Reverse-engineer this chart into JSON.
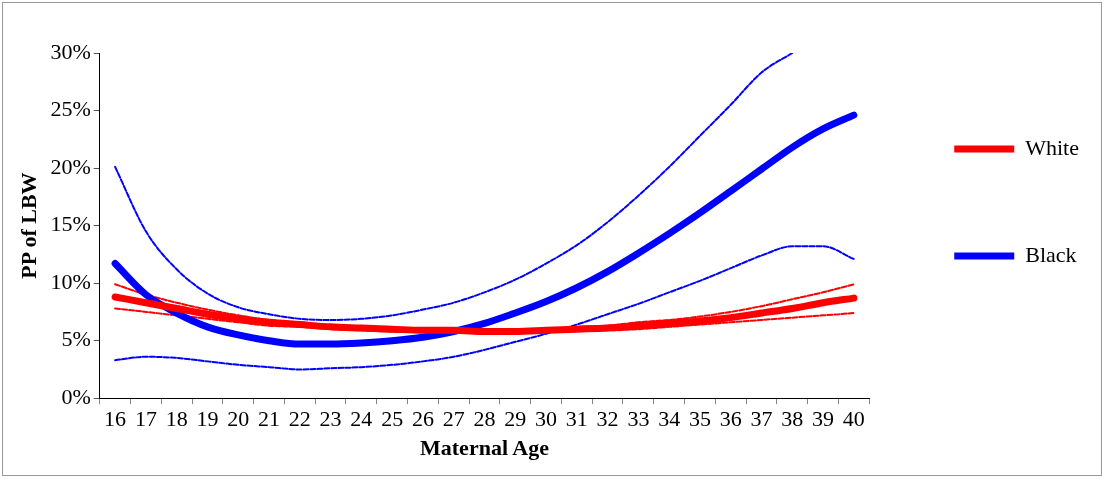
{
  "chart_data": {
    "type": "line",
    "xlabel": "Maternal Age",
    "ylabel": "PP of LBW",
    "categories": [
      "16",
      "17",
      "18",
      "19",
      "20",
      "21",
      "22",
      "23",
      "24",
      "25",
      "26",
      "27",
      "28",
      "29",
      "30",
      "31",
      "32",
      "33",
      "34",
      "35",
      "36",
      "37",
      "38",
      "39",
      "40"
    ],
    "ylim": [
      0,
      30
    ],
    "yticks": [
      {
        "value": 0,
        "label": "0%"
      },
      {
        "value": 5,
        "label": "5%"
      },
      {
        "value": 10,
        "label": "10%"
      },
      {
        "value": 15,
        "label": "15%"
      },
      {
        "value": 20,
        "label": "20%"
      },
      {
        "value": 25,
        "label": "25%"
      },
      {
        "value": 30,
        "label": "30%"
      }
    ],
    "grid": false,
    "legend": "right",
    "marker": "none",
    "line_style": "solid",
    "series": [
      {
        "name": "White",
        "color": "#ff0000",
        "values": [
          8.8,
          8.3,
          7.8,
          7.3,
          6.9,
          6.6,
          6.4,
          6.2,
          6.1,
          6.0,
          5.9,
          5.9,
          5.8,
          5.8,
          5.9,
          6.0,
          6.1,
          6.3,
          6.5,
          6.7,
          7.0,
          7.4,
          7.8,
          8.3,
          8.7
        ]
      },
      {
        "name": "Black",
        "color": "#0000ff",
        "values": [
          11.7,
          9.0,
          7.4,
          6.2,
          5.5,
          5.0,
          4.7,
          4.7,
          4.8,
          5.0,
          5.3,
          5.8,
          6.5,
          7.4,
          8.4,
          9.6,
          11.0,
          12.6,
          14.3,
          16.1,
          18.0,
          19.9,
          21.8,
          23.4,
          24.6
        ]
      },
      {
        "color": "#ff0000",
        "line_style": "dashed",
        "values": [
          7.8,
          7.5,
          7.2,
          6.9,
          6.6,
          6.3,
          6.2,
          6.0,
          5.9,
          5.8,
          5.8,
          5.7,
          5.7,
          5.7,
          5.8,
          5.9,
          5.9,
          6.0,
          6.2,
          6.4,
          6.6,
          6.8,
          7.0,
          7.2,
          7.4
        ]
      },
      {
        "color": "#ff0000",
        "line_style": "dashed",
        "values": [
          9.9,
          9.0,
          8.3,
          7.7,
          7.2,
          6.8,
          6.5,
          6.3,
          6.2,
          6.1,
          6.0,
          6.0,
          5.9,
          6.0,
          6.0,
          6.2,
          6.3,
          6.6,
          6.8,
          7.1,
          7.5,
          8.0,
          8.6,
          9.2,
          9.9
        ]
      },
      {
        "color": "#0000ff",
        "line_style": "dashed",
        "values": [
          3.3,
          3.6,
          3.5,
          3.2,
          2.9,
          2.7,
          2.5,
          2.6,
          2.7,
          2.9,
          3.2,
          3.6,
          4.2,
          4.9,
          5.6,
          6.4,
          7.3,
          8.2,
          9.2,
          10.2,
          11.3,
          12.4,
          13.2,
          13.2,
          12.1
        ]
      },
      {
        "color": "#0000ff",
        "line_style": "dashed",
        "values": [
          20.1,
          14.5,
          11.2,
          9.1,
          7.9,
          7.3,
          6.9,
          6.8,
          6.9,
          7.2,
          7.7,
          8.3,
          9.2,
          10.3,
          11.7,
          13.3,
          15.3,
          17.6,
          20.1,
          22.8,
          25.5,
          28.3,
          30.0,
          null,
          null
        ]
      }
    ]
  }
}
